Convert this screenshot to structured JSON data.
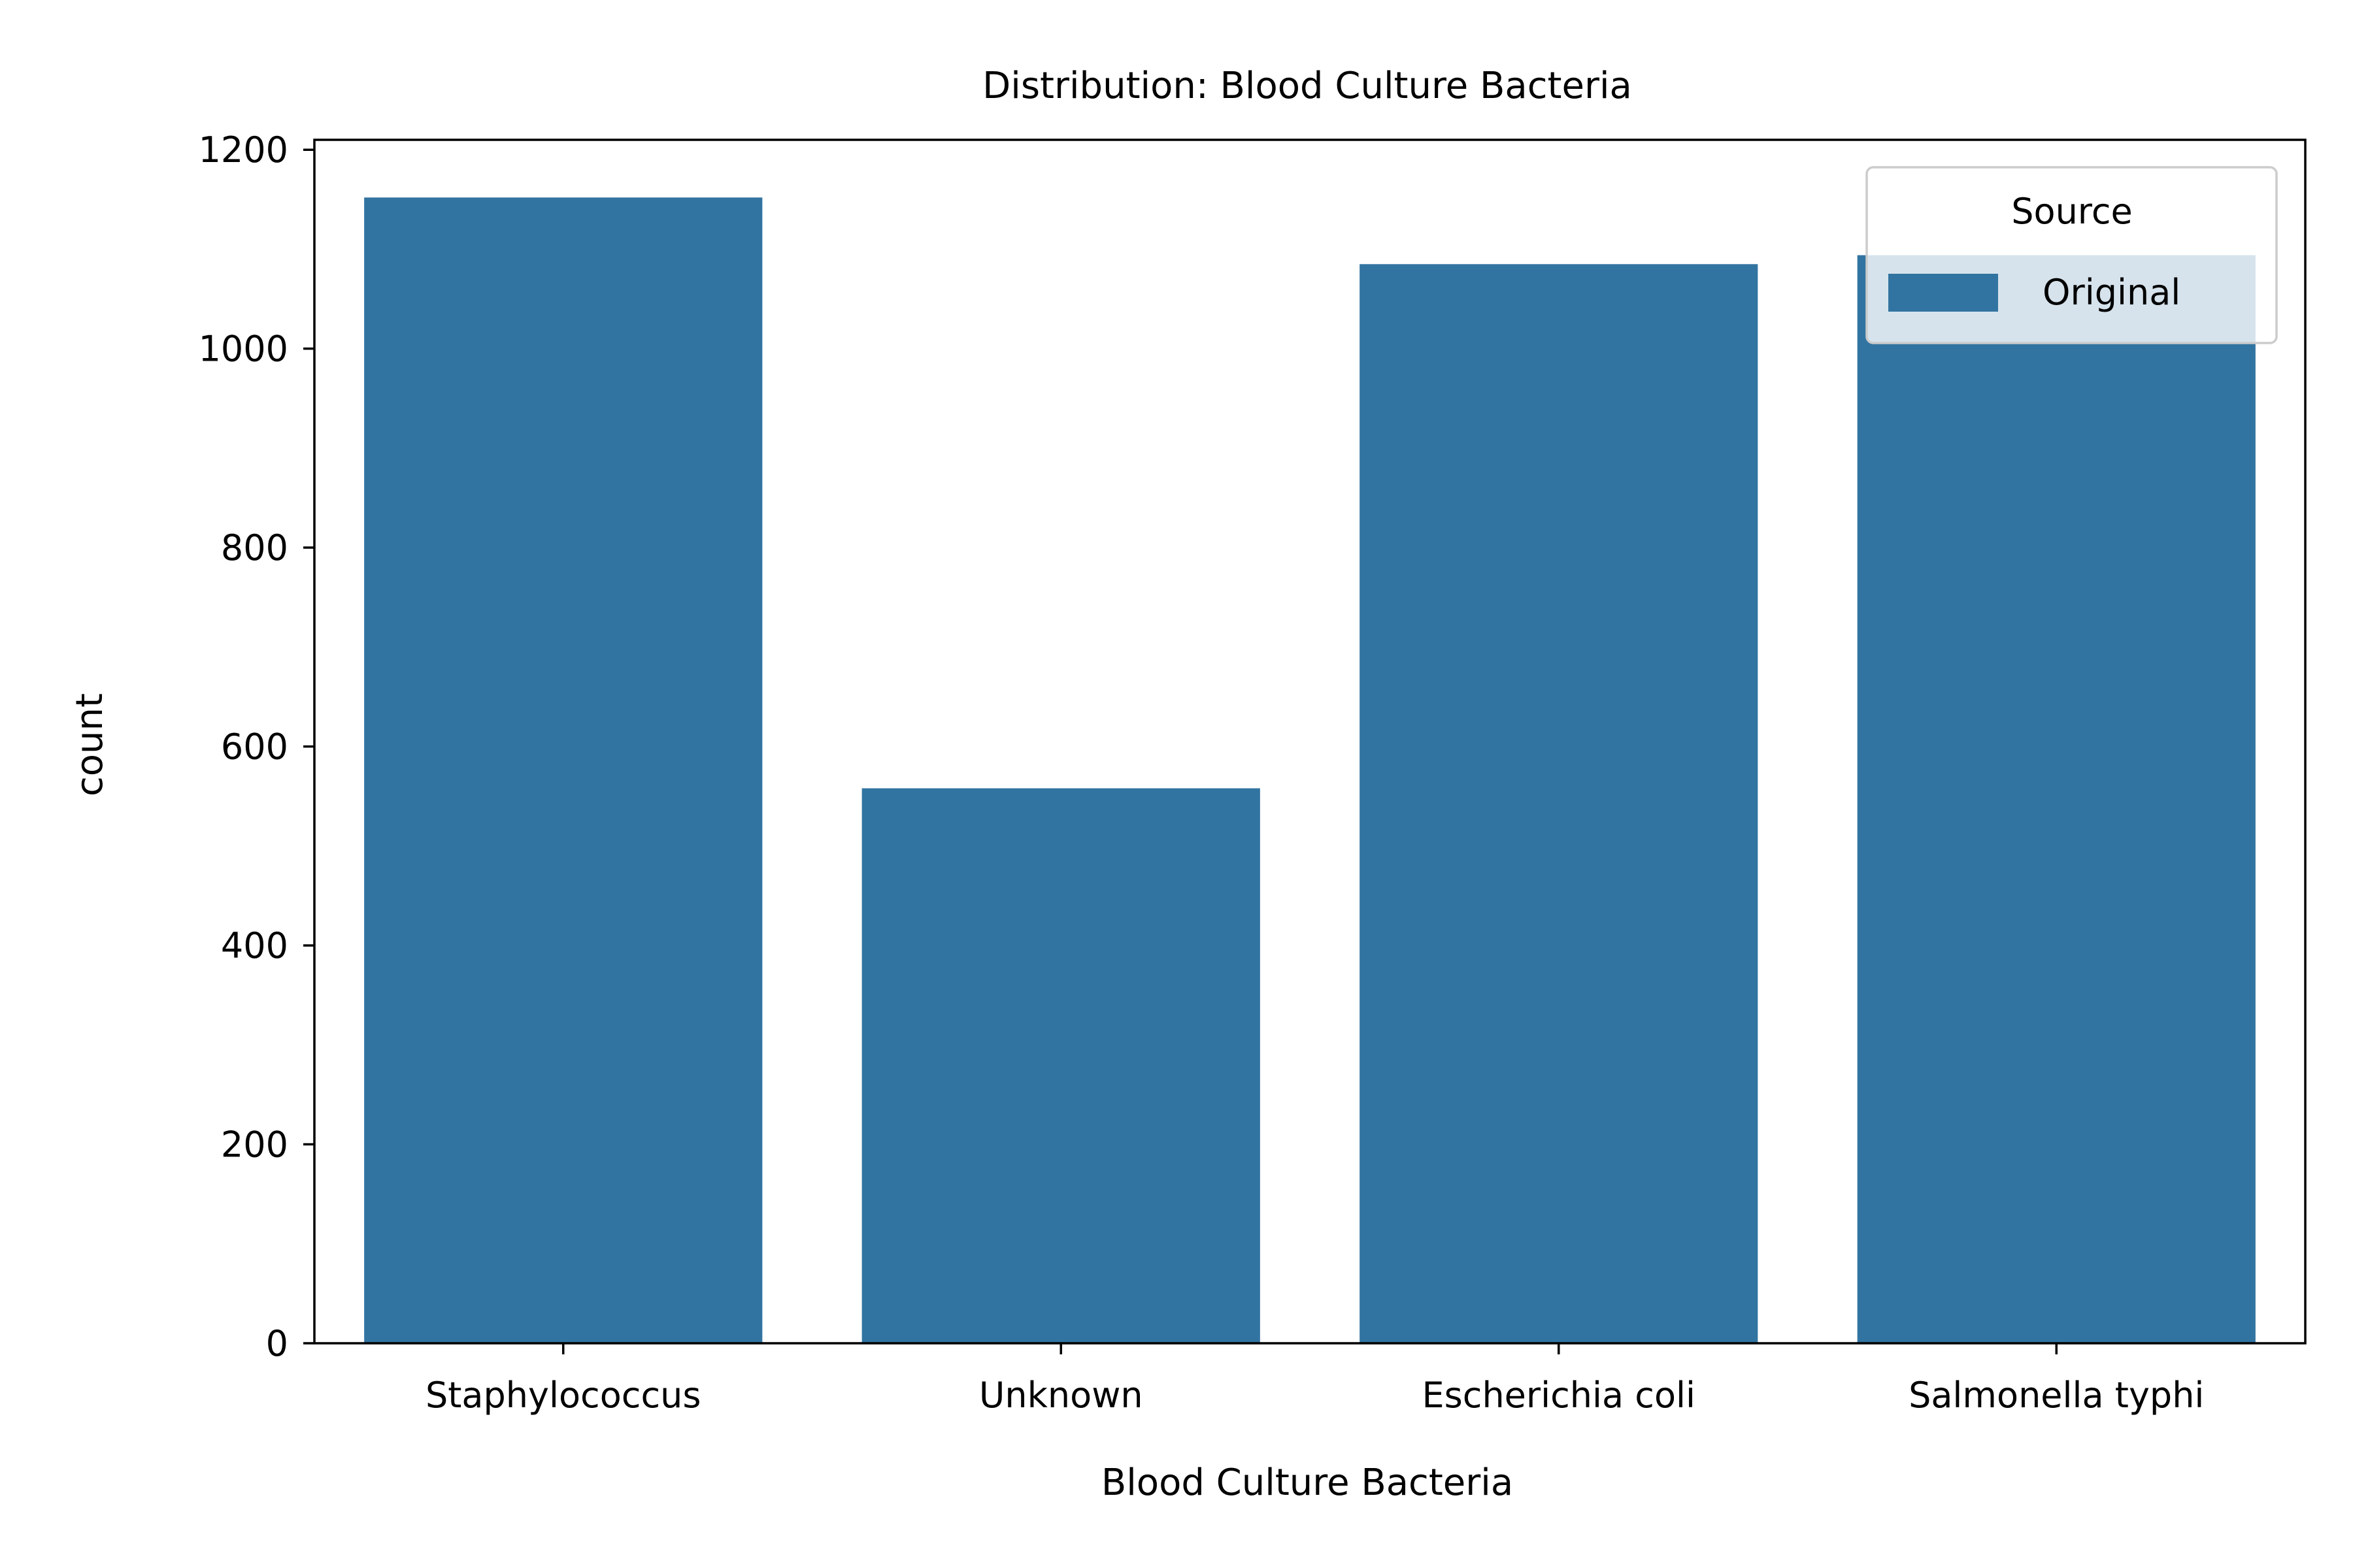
{
  "chart_data": {
    "type": "bar",
    "title": "Distribution: Blood Culture Bacteria",
    "xlabel": "Blood Culture Bacteria",
    "ylabel": "count",
    "categories": [
      "Staphylococcus",
      "Unknown",
      "Escherichia coli",
      "Salmonella typhi"
    ],
    "series": [
      {
        "name": "Original",
        "values": [
          1152,
          558,
          1085,
          1094
        ],
        "color": "#3274a1"
      }
    ],
    "ylim": [
      0,
      1210
    ],
    "yticks": [
      0,
      200,
      400,
      600,
      800,
      1000,
      1200
    ],
    "grid": false,
    "legend": {
      "title": "Source",
      "placement": "upper-right",
      "entries": [
        "Original"
      ]
    }
  }
}
